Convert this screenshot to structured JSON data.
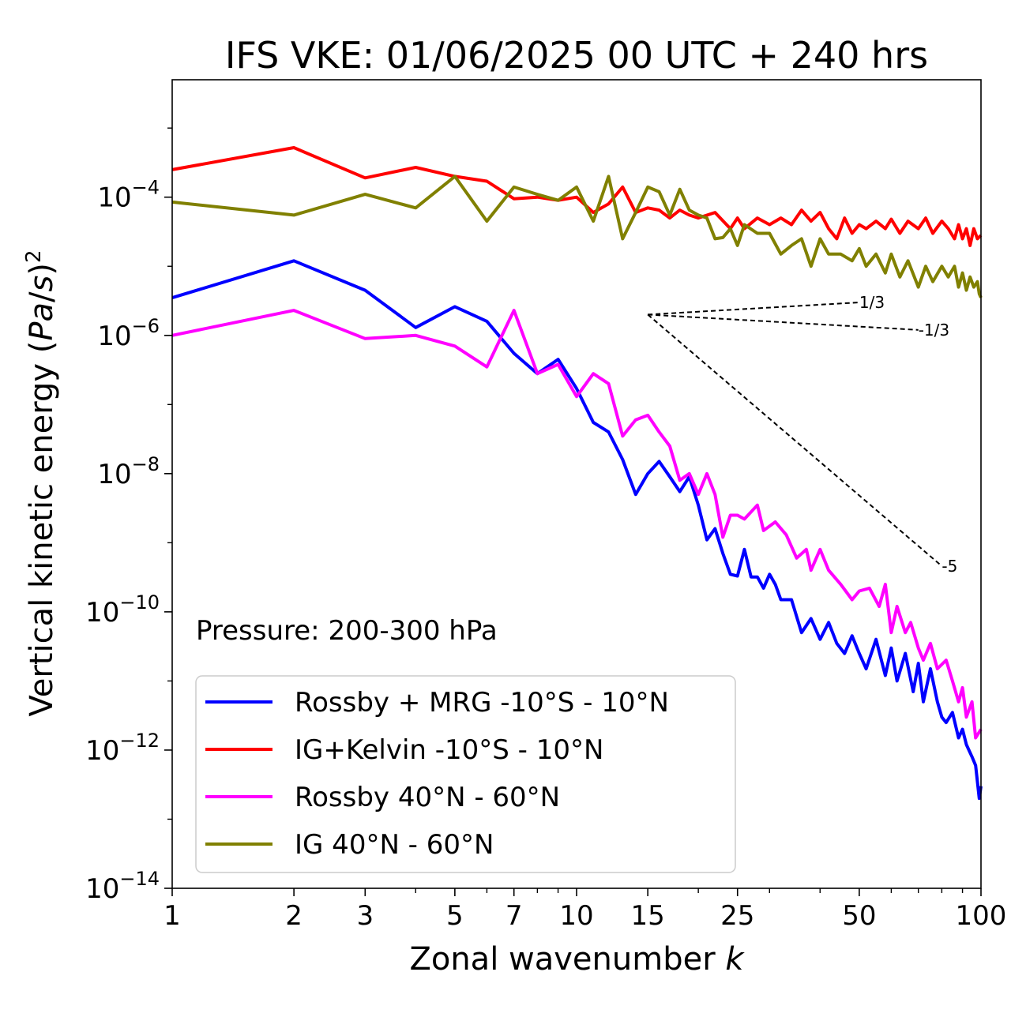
{
  "chart_data": {
    "type": "line",
    "title": "IFS VKE: 01/06/2025 00 UTC + 240 hrs",
    "xlabel": "Zonal wavenumber k",
    "ylabel": "Vertical kinetic energy (Pa/s)^2",
    "xscale": "log",
    "yscale": "log",
    "xlim": [
      1,
      100
    ],
    "ylim": [
      1e-14,
      0.005
    ],
    "x_ticks": [
      1,
      2,
      3,
      5,
      7,
      10,
      15,
      25,
      50,
      100
    ],
    "x_tick_labels": [
      "1",
      "2",
      "3",
      "5",
      "7",
      "10",
      "15",
      "25",
      "50",
      "100"
    ],
    "y_ticks": [
      1e-14,
      1e-12,
      1e-10,
      1e-08,
      1e-06,
      0.0001
    ],
    "y_tick_labels": [
      {
        "base": "10",
        "exp": "−14"
      },
      {
        "base": "10",
        "exp": "−12"
      },
      {
        "base": "10",
        "exp": "−10"
      },
      {
        "base": "10",
        "exp": "−8"
      },
      {
        "base": "10",
        "exp": "−6"
      },
      {
        "base": "10",
        "exp": "−4"
      }
    ],
    "grid": false,
    "legend_position": "lower-left",
    "annotation": "Pressure: 200-300 hPa",
    "series": [
      {
        "name": "Rossby + MRG -10°S - 10°N",
        "color": "#0000ff",
        "points": [
          [
            1,
            3.5e-06
          ],
          [
            2,
            1.2e-05
          ],
          [
            3,
            4.5e-06
          ],
          [
            4,
            1.3e-06
          ],
          [
            5,
            2.6e-06
          ],
          [
            6,
            1.6e-06
          ],
          [
            7,
            5.5e-07
          ],
          [
            8,
            2.8e-07
          ],
          [
            9,
            4.5e-07
          ],
          [
            10,
            1.7e-07
          ],
          [
            11,
            5.5e-08
          ],
          [
            12,
            4e-08
          ],
          [
            13,
            1.6e-08
          ],
          [
            14,
            5e-09
          ],
          [
            15,
            1e-08
          ],
          [
            16,
            1.5e-08
          ],
          [
            17,
            9e-09
          ],
          [
            18,
            5.5e-09
          ],
          [
            19,
            9e-09
          ],
          [
            20,
            3.5e-09
          ],
          [
            21,
            1.1e-09
          ],
          [
            22,
            1.6e-09
          ],
          [
            23,
            7e-10
          ],
          [
            24,
            3.5e-10
          ],
          [
            25,
            3.3e-10
          ],
          [
            26,
            8e-10
          ],
          [
            27,
            3.2e-10
          ],
          [
            28,
            3.2e-10
          ],
          [
            29,
            2.2e-10
          ],
          [
            30,
            3.5e-10
          ],
          [
            31,
            2.5e-10
          ],
          [
            32,
            1.5e-10
          ],
          [
            34,
            1.5e-10
          ],
          [
            36,
            5e-11
          ],
          [
            38,
            8e-11
          ],
          [
            40,
            4e-11
          ],
          [
            42,
            7e-11
          ],
          [
            44,
            3.5e-11
          ],
          [
            46,
            2.5e-11
          ],
          [
            48,
            4.5e-11
          ],
          [
            50,
            2.5e-11
          ],
          [
            52,
            1.5e-11
          ],
          [
            55,
            4e-11
          ],
          [
            58,
            1.2e-11
          ],
          [
            60,
            3e-11
          ],
          [
            62,
            1e-11
          ],
          [
            65,
            2.5e-11
          ],
          [
            68,
            7e-12
          ],
          [
            70,
            1.8e-11
          ],
          [
            72,
            5e-12
          ],
          [
            75,
            1.5e-11
          ],
          [
            78,
            5e-12
          ],
          [
            80,
            3e-12
          ],
          [
            82,
            2.5e-12
          ],
          [
            85,
            3.5e-12
          ],
          [
            88,
            1.5e-12
          ],
          [
            90,
            2e-12
          ],
          [
            92,
            1.2e-12
          ],
          [
            95,
            8e-13
          ],
          [
            97,
            6e-13
          ],
          [
            99,
            2e-13
          ],
          [
            100,
            3e-13
          ]
        ]
      },
      {
        "name": "IG+Kelvin -10°S - 10°N",
        "color": "#ff0000",
        "points": [
          [
            1,
            0.00025
          ],
          [
            2,
            0.00052
          ],
          [
            3,
            0.00019
          ],
          [
            4,
            0.00027
          ],
          [
            5,
            0.0002
          ],
          [
            6,
            0.00017
          ],
          [
            7,
            9.5e-05
          ],
          [
            8,
            0.0001
          ],
          [
            9,
            9e-05
          ],
          [
            10,
            0.0001
          ],
          [
            11,
            6e-05
          ],
          [
            12,
            8e-05
          ],
          [
            13,
            0.00014
          ],
          [
            14,
            6e-05
          ],
          [
            15,
            7e-05
          ],
          [
            16,
            6.5e-05
          ],
          [
            17,
            5e-05
          ],
          [
            18,
            6.5e-05
          ],
          [
            19,
            5.5e-05
          ],
          [
            20,
            5e-05
          ],
          [
            22,
            6e-05
          ],
          [
            24,
            3.5e-05
          ],
          [
            25,
            5e-05
          ],
          [
            26,
            3.5e-05
          ],
          [
            28,
            5e-05
          ],
          [
            30,
            4e-05
          ],
          [
            32,
            5e-05
          ],
          [
            34,
            4e-05
          ],
          [
            36,
            6.5e-05
          ],
          [
            38,
            4.5e-05
          ],
          [
            40,
            6e-05
          ],
          [
            42,
            3.5e-05
          ],
          [
            44,
            2.5e-05
          ],
          [
            46,
            5e-05
          ],
          [
            48,
            3e-05
          ],
          [
            50,
            4e-05
          ],
          [
            52,
            3.5e-05
          ],
          [
            55,
            4.5e-05
          ],
          [
            58,
            3.5e-05
          ],
          [
            60,
            4.8e-05
          ],
          [
            63,
            3e-05
          ],
          [
            66,
            4.5e-05
          ],
          [
            70,
            3.5e-05
          ],
          [
            73,
            5e-05
          ],
          [
            76,
            3e-05
          ],
          [
            80,
            4.5e-05
          ],
          [
            83,
            3.5e-05
          ],
          [
            86,
            2.5e-05
          ],
          [
            88,
            4e-05
          ],
          [
            90,
            2.5e-05
          ],
          [
            92,
            3.5e-05
          ],
          [
            94,
            2e-05
          ],
          [
            96,
            3.5e-05
          ],
          [
            98,
            2.5e-05
          ],
          [
            100,
            2.8e-05
          ]
        ]
      },
      {
        "name": "Rossby 40°N - 60°N",
        "color": "#ff00ff",
        "points": [
          [
            1,
            1e-06
          ],
          [
            2,
            2.3e-06
          ],
          [
            3,
            9e-07
          ],
          [
            4,
            1e-06
          ],
          [
            5,
            7e-07
          ],
          [
            6,
            3.5e-07
          ],
          [
            7,
            2.3e-06
          ],
          [
            8,
            2.8e-07
          ],
          [
            9,
            3.8e-07
          ],
          [
            10,
            1.3e-07
          ],
          [
            11,
            2.8e-07
          ],
          [
            12,
            2e-07
          ],
          [
            13,
            3.5e-08
          ],
          [
            14,
            6e-08
          ],
          [
            15,
            7e-08
          ],
          [
            16,
            4e-08
          ],
          [
            17,
            2.5e-08
          ],
          [
            18,
            8e-09
          ],
          [
            19,
            1e-08
          ],
          [
            20,
            5e-09
          ],
          [
            21,
            1e-08
          ],
          [
            22,
            5e-09
          ],
          [
            23,
            1.2e-09
          ],
          [
            24,
            2.5e-09
          ],
          [
            25,
            2.5e-09
          ],
          [
            26,
            2.2e-09
          ],
          [
            28,
            3.5e-09
          ],
          [
            29,
            1.5e-09
          ],
          [
            31,
            2e-09
          ],
          [
            33,
            1.3e-09
          ],
          [
            35,
            6e-10
          ],
          [
            37,
            8e-10
          ],
          [
            38,
            4e-10
          ],
          [
            40,
            8e-10
          ],
          [
            42,
            4e-10
          ],
          [
            45,
            2.5e-10
          ],
          [
            48,
            1.5e-10
          ],
          [
            50,
            2e-10
          ],
          [
            53,
            2.2e-10
          ],
          [
            56,
            1.2e-10
          ],
          [
            58,
            2.5e-10
          ],
          [
            60,
            5e-11
          ],
          [
            62,
            1.2e-10
          ],
          [
            65,
            5e-11
          ],
          [
            67,
            7e-11
          ],
          [
            70,
            3e-11
          ],
          [
            72,
            2e-11
          ],
          [
            75,
            3.5e-11
          ],
          [
            78,
            1.5e-11
          ],
          [
            82,
            2e-11
          ],
          [
            85,
            1e-11
          ],
          [
            88,
            5e-12
          ],
          [
            90,
            8e-12
          ],
          [
            92,
            3e-12
          ],
          [
            95,
            5e-12
          ],
          [
            97,
            1.5e-12
          ],
          [
            100,
            2e-12
          ]
        ]
      },
      {
        "name": "IG 40°N - 60°N",
        "color": "#808000",
        "points": [
          [
            1,
            8.5e-05
          ],
          [
            2,
            5.5e-05
          ],
          [
            3,
            0.00011
          ],
          [
            4,
            7e-05
          ],
          [
            5,
            0.0002
          ],
          [
            6,
            4.5e-05
          ],
          [
            7,
            0.00014
          ],
          [
            8,
            0.00011
          ],
          [
            9,
            9e-05
          ],
          [
            10,
            0.00014
          ],
          [
            11,
            4.5e-05
          ],
          [
            12,
            0.0002
          ],
          [
            13,
            2.5e-05
          ],
          [
            14,
            6e-05
          ],
          [
            15,
            0.00014
          ],
          [
            16,
            0.00012
          ],
          [
            17,
            5.5e-05
          ],
          [
            18,
            0.00013
          ],
          [
            19,
            6.5e-05
          ],
          [
            20,
            5.5e-05
          ],
          [
            21,
            5e-05
          ],
          [
            22,
            2.5e-05
          ],
          [
            23,
            2.6e-05
          ],
          [
            24,
            3.5e-05
          ],
          [
            25,
            2e-05
          ],
          [
            26,
            4e-05
          ],
          [
            28,
            3e-05
          ],
          [
            30,
            3e-05
          ],
          [
            32,
            1.5e-05
          ],
          [
            34,
            2e-05
          ],
          [
            36,
            2.5e-05
          ],
          [
            38,
            1e-05
          ],
          [
            40,
            2.5e-05
          ],
          [
            42,
            1.5e-05
          ],
          [
            45,
            1.5e-05
          ],
          [
            48,
            1.2e-05
          ],
          [
            50,
            1.8e-05
          ],
          [
            52,
            1e-05
          ],
          [
            55,
            1.5e-05
          ],
          [
            58,
            8e-06
          ],
          [
            60,
            1.5e-05
          ],
          [
            63,
            7e-06
          ],
          [
            66,
            1.2e-05
          ],
          [
            70,
            5e-06
          ],
          [
            73,
            1e-05
          ],
          [
            76,
            6e-06
          ],
          [
            80,
            1e-05
          ],
          [
            83,
            7e-06
          ],
          [
            86,
            1e-05
          ],
          [
            88,
            5e-06
          ],
          [
            90,
            8e-06
          ],
          [
            92,
            4.5e-06
          ],
          [
            94,
            7e-06
          ],
          [
            96,
            5e-06
          ],
          [
            98,
            6e-06
          ],
          [
            99,
            4e-06
          ],
          [
            100,
            3.5e-06
          ]
        ]
      }
    ],
    "reference_slopes": [
      {
        "label": "1/3",
        "x0": 15,
        "y0": 2e-06,
        "x1": 50,
        "y1": 3e-06
      },
      {
        "label": "-1/3",
        "x0": 15,
        "y0": 2e-06,
        "x1": 70,
        "y1": 1.2e-06
      },
      {
        "label": "-5",
        "x0": 15,
        "y0": 2e-06,
        "x1": 80,
        "y1": 4.6e-10
      }
    ]
  }
}
